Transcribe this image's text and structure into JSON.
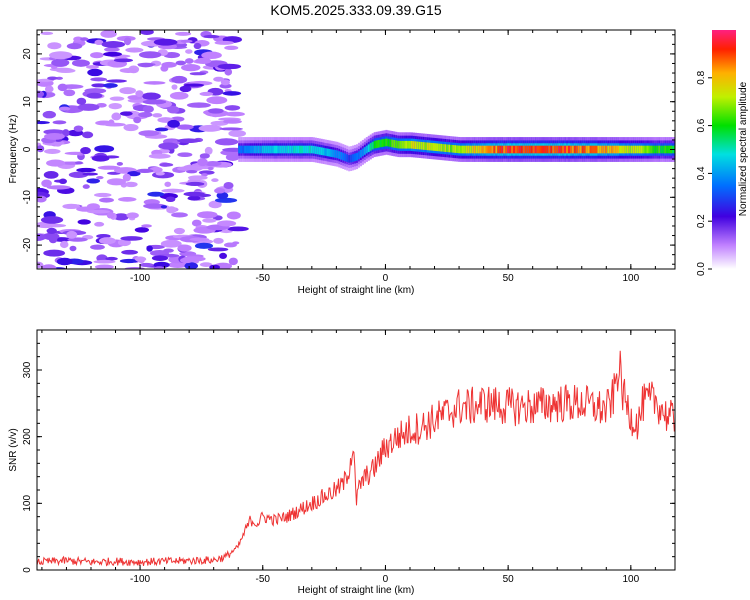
{
  "title": "KOM5.2025.333.09.39.G15",
  "chart_data": [
    {
      "type": "heatmap",
      "xlabel": "Height of straight line (km)",
      "ylabel": "Frequency (Hz)",
      "xlim": [
        -142,
        118
      ],
      "ylim": [
        -25,
        25
      ],
      "xticks": [
        "-100",
        "-50",
        "0",
        "50",
        "100"
      ],
      "xtick_values": [
        -100,
        -50,
        0,
        50,
        100
      ],
      "yticks": [
        "-20",
        "-10",
        "0",
        "10",
        "20"
      ],
      "ytick_values": [
        -20,
        -10,
        0,
        10,
        20
      ],
      "colorbar": {
        "label": "Normalized spectral amplitude",
        "range": [
          0,
          1
        ],
        "ticks": [
          "0.0",
          "0.2",
          "0.4",
          "0.6",
          "0.8"
        ],
        "tick_values": [
          0.0,
          0.2,
          0.4,
          0.6,
          0.8
        ]
      },
      "noise_region_x": [
        -142,
        -60
      ],
      "ridge": {
        "x": [
          -60,
          -50,
          -40,
          -30,
          -20,
          -15,
          -12,
          -8,
          -5,
          0,
          5,
          10,
          20,
          30,
          35,
          50,
          70,
          90,
          100,
          110,
          118
        ],
        "freq": [
          0,
          0,
          0,
          0,
          -1,
          -2,
          -1.5,
          0,
          1,
          1.5,
          1,
          1,
          0.5,
          0,
          0,
          0,
          0,
          0,
          0,
          0,
          0
        ],
        "amplitude": [
          0.35,
          0.45,
          0.5,
          0.5,
          0.4,
          0.3,
          0.35,
          0.45,
          0.6,
          0.65,
          0.7,
          0.75,
          0.75,
          0.7,
          0.8,
          0.95,
          0.95,
          0.85,
          0.75,
          0.65,
          0.6
        ]
      }
    },
    {
      "type": "line",
      "xlabel": "Height of straight line (km)",
      "ylabel": "SNR (v/v)",
      "xlim": [
        -142,
        118
      ],
      "ylim": [
        0,
        360
      ],
      "xticks": [
        "-100",
        "-50",
        "0",
        "50",
        "100"
      ],
      "xtick_values": [
        -100,
        -50,
        0,
        50,
        100
      ],
      "yticks": [
        "0",
        "100",
        "200",
        "300"
      ],
      "ytick_values": [
        0,
        100,
        200,
        300
      ],
      "line_color": "#ee3333",
      "series": [
        {
          "name": "SNR",
          "x": [
            -142,
            -130,
            -120,
            -110,
            -100,
            -90,
            -80,
            -70,
            -65,
            -60,
            -57,
            -55,
            -52,
            -50,
            -45,
            -40,
            -35,
            -30,
            -25,
            -20,
            -17,
            -15,
            -13,
            -12,
            -11,
            -10,
            -8,
            -5,
            -2,
            0,
            2,
            5,
            8,
            10,
            15,
            20,
            25,
            30,
            35,
            40,
            50,
            60,
            70,
            80,
            85,
            90,
            93,
            95,
            97,
            100,
            103,
            105,
            110,
            115,
            118
          ],
          "y": [
            12,
            14,
            12,
            13,
            12,
            13,
            14,
            15,
            20,
            35,
            60,
            75,
            70,
            80,
            75,
            80,
            90,
            100,
            110,
            120,
            130,
            150,
            190,
            100,
            120,
            130,
            140,
            150,
            170,
            185,
            190,
            200,
            205,
            210,
            215,
            225,
            235,
            245,
            245,
            250,
            245,
            245,
            250,
            250,
            245,
            240,
            260,
            310,
            260,
            230,
            220,
            250,
            255,
            230,
            225
          ]
        }
      ]
    }
  ]
}
